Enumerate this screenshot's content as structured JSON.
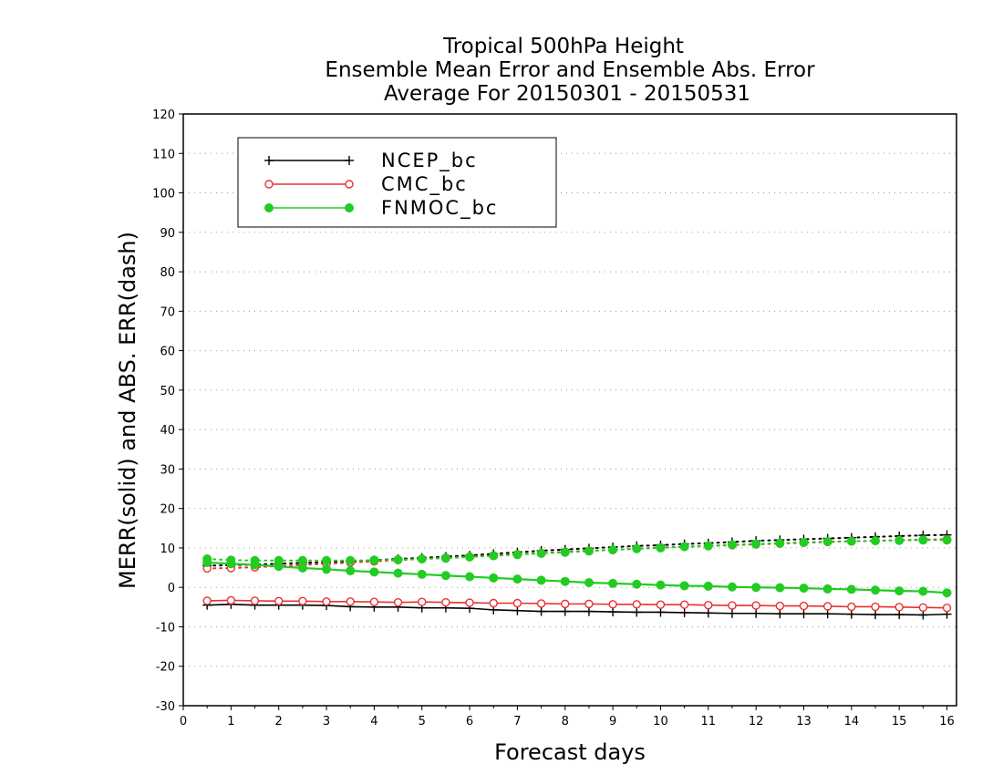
{
  "chart_data": {
    "type": "line",
    "title_lines": [
      "Tropical 500hPa Height",
      "Ensemble Mean Error and Ensemble Abs. Error",
      "Average For 20150301 - 20150531"
    ],
    "xlabel": "Forecast days",
    "ylabel": "MERR(solid) and ABS. ERR(dash)",
    "xlim": [
      0,
      16.2
    ],
    "ylim": [
      -30,
      120
    ],
    "xticks": [
      0,
      1,
      2,
      3,
      4,
      5,
      6,
      7,
      8,
      9,
      10,
      11,
      12,
      13,
      14,
      15,
      16
    ],
    "xtick_labels": [
      "0",
      "1",
      "2",
      "3",
      "4",
      "5",
      "6",
      "7",
      "8",
      "9",
      "10",
      "11",
      "12",
      "13",
      "14",
      "15",
      "16"
    ],
    "yticks": [
      -30,
      -20,
      -10,
      0,
      10,
      20,
      30,
      40,
      50,
      60,
      70,
      80,
      90,
      100,
      110,
      120
    ],
    "ytick_labels": [
      "-30",
      "-20",
      "-10",
      "0",
      "10",
      "20",
      "30",
      "40",
      "50",
      "60",
      "70",
      "80",
      "90",
      "100",
      "110",
      "120"
    ],
    "grid": "horizontal dotted",
    "legend_position": "top-left",
    "x": [
      0.5,
      1,
      1.5,
      2,
      2.5,
      3,
      3.5,
      4,
      4.5,
      5,
      5.5,
      6,
      6.5,
      7,
      7.5,
      8,
      8.5,
      9,
      9.5,
      10,
      10.5,
      11,
      11.5,
      12,
      12.5,
      13,
      13.5,
      14,
      14.5,
      15,
      15.5,
      16
    ],
    "series": [
      {
        "name": "NCEP_bc",
        "color": "#000000",
        "marker": "plus",
        "merr": [
          -4.5,
          -4.3,
          -4.5,
          -4.5,
          -4.5,
          -4.6,
          -4.9,
          -5.0,
          -5.0,
          -5.2,
          -5.2,
          -5.3,
          -5.7,
          -5.9,
          -6.1,
          -6.1,
          -6.1,
          -6.2,
          -6.3,
          -6.3,
          -6.4,
          -6.5,
          -6.6,
          -6.6,
          -6.7,
          -6.7,
          -6.7,
          -6.8,
          -6.9,
          -6.9,
          -7.0,
          -6.8
        ],
        "abs_err": [
          5.5,
          5.6,
          5.8,
          6.0,
          6.2,
          6.4,
          6.6,
          6.9,
          7.2,
          7.5,
          7.8,
          8.1,
          8.5,
          8.9,
          9.3,
          9.6,
          9.9,
          10.2,
          10.5,
          10.7,
          11.0,
          11.2,
          11.5,
          11.8,
          12.0,
          12.2,
          12.4,
          12.6,
          12.8,
          13.0,
          13.2,
          13.3
        ]
      },
      {
        "name": "CMC_bc",
        "color": "#e83030",
        "marker": "open-circle",
        "merr": [
          -3.4,
          -3.3,
          -3.4,
          -3.5,
          -3.5,
          -3.6,
          -3.6,
          -3.7,
          -3.8,
          -3.7,
          -3.8,
          -3.9,
          -4.0,
          -4.0,
          -4.1,
          -4.2,
          -4.2,
          -4.3,
          -4.3,
          -4.4,
          -4.4,
          -4.5,
          -4.6,
          -4.6,
          -4.7,
          -4.7,
          -4.8,
          -4.9,
          -4.9,
          -5.0,
          -5.1,
          -5.2
        ],
        "abs_err": [
          4.8,
          4.9,
          5.1,
          5.4,
          5.7,
          6.0,
          6.3,
          6.6,
          6.9,
          7.2,
          7.5,
          7.8,
          8.1,
          8.4,
          8.7,
          9.0,
          9.3,
          9.5,
          9.8,
          10.1,
          10.3,
          10.5,
          10.7,
          10.9,
          11.1,
          11.3,
          11.5,
          11.7,
          11.8,
          12.0,
          12.1,
          12.2
        ]
      },
      {
        "name": "FNMOC_bc",
        "color": "#22cc22",
        "marker": "filled-circle",
        "merr": [
          6.3,
          6.0,
          5.7,
          5.3,
          4.9,
          4.6,
          4.2,
          3.9,
          3.6,
          3.3,
          3.0,
          2.7,
          2.4,
          2.1,
          1.8,
          1.5,
          1.2,
          1.0,
          0.8,
          0.6,
          0.4,
          0.3,
          0.1,
          0.0,
          -0.1,
          -0.2,
          -0.4,
          -0.5,
          -0.7,
          -0.9,
          -1.0,
          -1.4
        ],
        "abs_err": [
          7.2,
          6.9,
          6.8,
          6.8,
          6.8,
          6.8,
          6.8,
          6.9,
          7.0,
          7.2,
          7.4,
          7.7,
          8.0,
          8.3,
          8.6,
          8.9,
          9.2,
          9.5,
          9.8,
          10.0,
          10.3,
          10.5,
          10.8,
          11.0,
          11.2,
          11.4,
          11.6,
          11.7,
          11.8,
          11.9,
          12.0,
          12.0
        ]
      }
    ]
  }
}
